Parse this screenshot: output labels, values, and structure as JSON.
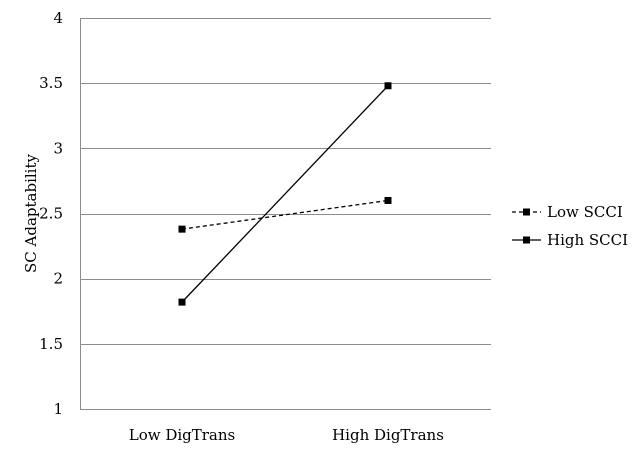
{
  "chart_data": {
    "type": "line",
    "categories": [
      "Low DigTrans",
      "High DigTrans"
    ],
    "series": [
      {
        "name": "Low SCCI",
        "values": [
          2.38,
          2.6
        ],
        "style": "dashed",
        "color": "#000000"
      },
      {
        "name": "High SCCI",
        "values": [
          1.82,
          3.48
        ],
        "style": "solid",
        "color": "#000000"
      }
    ],
    "xlabel": "",
    "ylabel": "SC Adaptability",
    "ylim": [
      1,
      4
    ],
    "yticks": [
      1,
      1.5,
      2,
      2.5,
      3,
      3.5,
      4
    ],
    "ytick_labels": [
      "1",
      "1.5",
      "2",
      "2.5",
      "3",
      "3.5",
      "4"
    ],
    "grid": true,
    "legend_position": "right"
  }
}
